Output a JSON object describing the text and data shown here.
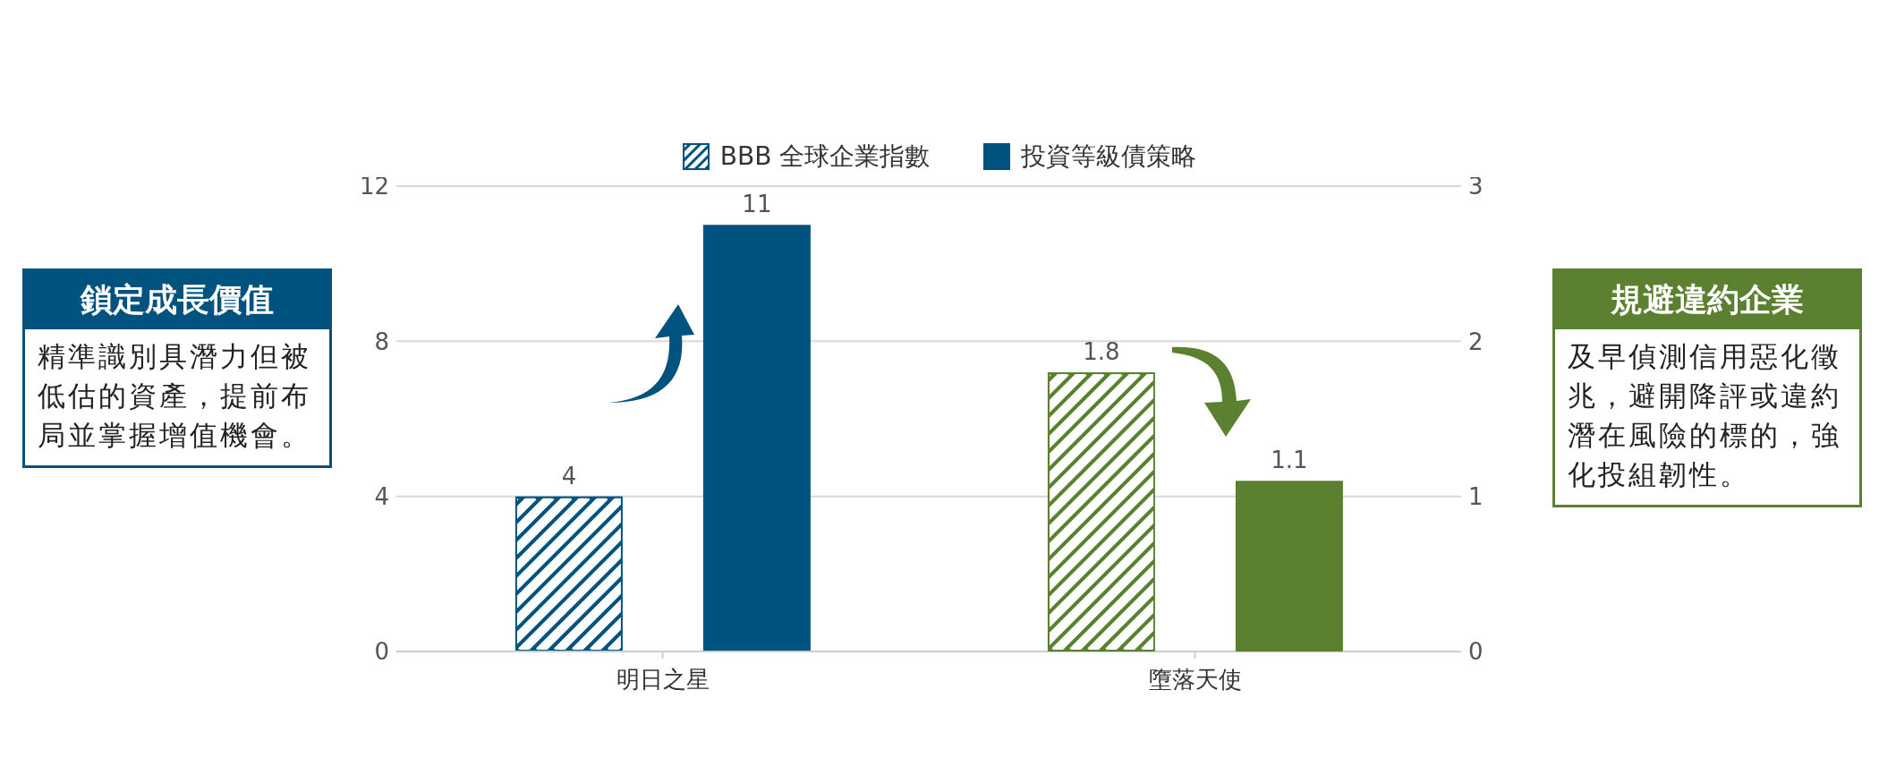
{
  "chart_data": {
    "type": "bar",
    "categories": [
      "明日之星",
      "墮落天使"
    ],
    "series": [
      {
        "name": "BBB 全球企業指數",
        "color": "#00527f",
        "values": [
          4,
          null
        ]
      },
      {
        "name": "投資等級債策略",
        "color": "#00527f",
        "values": [
          11,
          null
        ]
      },
      {
        "color": "#5b8130",
        "values": [
          null,
          1.8
        ],
        "axis": "y2"
      },
      {
        "color": "#5b8130",
        "values": [
          null,
          1.1
        ],
        "axis": "y2"
      }
    ],
    "ylim": [
      0,
      12
    ],
    "yticks": [
      0,
      4,
      8,
      12
    ],
    "y2lim": [
      0,
      3
    ],
    "y2ticks": [
      0,
      1,
      2,
      3
    ],
    "grid": "y",
    "legend": "top",
    "data_labels": true,
    "annotations": [
      "鎖定成長價值",
      "精準識別具潛力但被低估的資產，提前布局並掌握增值機會。",
      "規避違約企業",
      "及早偵測信用惡化徵兆，避開降評或違約潛在風險的標的，強化投組韌性。"
    ]
  }
}
